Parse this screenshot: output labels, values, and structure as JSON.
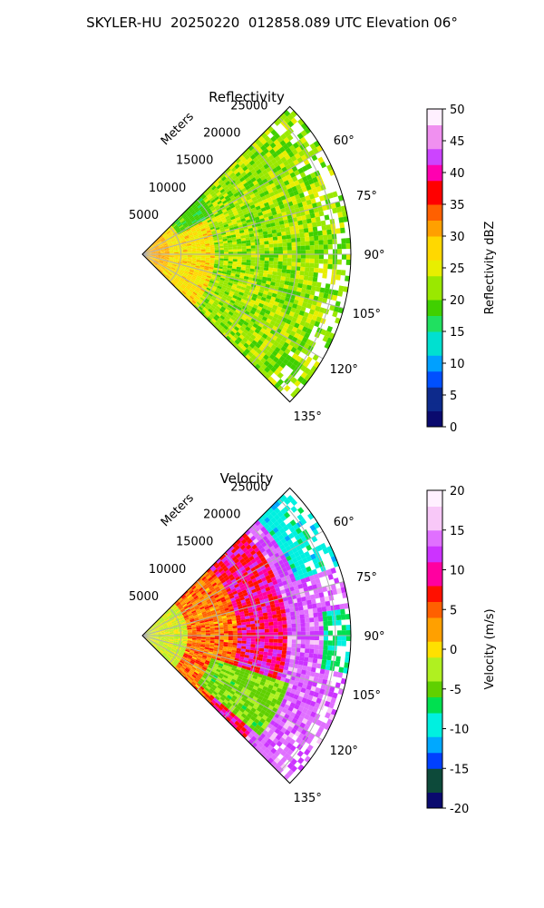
{
  "figure": {
    "title": "SKYLER-HU  20250220  012858.089 UTC Elevation 06°"
  },
  "chart_data": [
    {
      "type": "heatmap",
      "subtype": "polar-ppi-sector",
      "title": "Reflectivity",
      "range_axis_label": "Meters",
      "range_ticks": [
        "5000",
        "10000",
        "15000",
        "20000",
        "25000"
      ],
      "range_tick_values": [
        5000,
        10000,
        15000,
        20000,
        25000
      ],
      "range_max": 27000,
      "azimuth_range": [
        45,
        135
      ],
      "azimuth_ticks": [
        "60°",
        "75°",
        "90°",
        "105°",
        "120°",
        "135°"
      ],
      "azimuth_tick_values": [
        60,
        75,
        90,
        105,
        120,
        135
      ],
      "grid": true,
      "colorbar": {
        "label": "Reflectivity dBZ",
        "min": 0,
        "max": 50,
        "ticks": [
          "0",
          "5",
          "10",
          "15",
          "20",
          "25",
          "30",
          "35",
          "40",
          "45",
          "50"
        ],
        "tick_values": [
          0,
          5,
          10,
          15,
          20,
          25,
          30,
          35,
          40,
          45,
          50
        ],
        "colors": [
          "#0a0a6e",
          "#0d2a8c",
          "#0050ff",
          "#00a0ff",
          "#00e0d0",
          "#20e060",
          "#40d000",
          "#9ae800",
          "#e8ee00",
          "#ffd800",
          "#ffa000",
          "#ff6000",
          "#ff0000",
          "#ff00b0",
          "#cc44ff",
          "#f090f0",
          "#fff0ff"
        ]
      },
      "field_description": "mostly 20–25 dBZ (yellow-green), 25–32 dBZ near the radar, scattered returns at far range"
    },
    {
      "type": "heatmap",
      "subtype": "polar-ppi-sector",
      "title": "Velocity",
      "range_axis_label": "Meters",
      "range_ticks": [
        "5000",
        "10000",
        "15000",
        "20000",
        "25000"
      ],
      "range_tick_values": [
        5000,
        10000,
        15000,
        20000,
        25000
      ],
      "range_max": 27000,
      "azimuth_range": [
        45,
        135
      ],
      "azimuth_ticks": [
        "60°",
        "75°",
        "90°",
        "105°",
        "120°",
        "135°"
      ],
      "azimuth_tick_values": [
        60,
        75,
        90,
        105,
        120,
        135
      ],
      "grid": true,
      "colorbar": {
        "label": "Velocity (m/s)",
        "min": -20,
        "max": 20,
        "ticks": [
          "-20",
          "-15",
          "-10",
          "-5",
          "0",
          "5",
          "10",
          "15",
          "20"
        ],
        "tick_values": [
          -20,
          -15,
          -10,
          -5,
          0,
          5,
          10,
          15,
          20
        ],
        "colors": [
          "#0a0a6e",
          "#0d4a3a",
          "#0040ff",
          "#00a8ff",
          "#00f0e0",
          "#00e050",
          "#60d000",
          "#b0f020",
          "#ffe000",
          "#ffa000",
          "#ff6000",
          "#ff1000",
          "#ff00a0",
          "#cc33ff",
          "#e070ff",
          "#f8c8f8",
          "#fff0ff"
        ]
      },
      "field_description": "near 0 m/s close to radar, +5 to +15 m/s band at mid range, -5 m/s green region at lower sector, -10 to -12 m/s at far range edges"
    }
  ]
}
